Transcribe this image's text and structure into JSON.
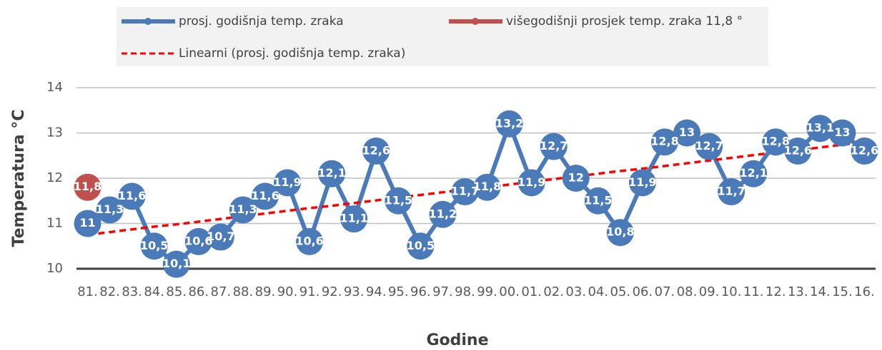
{
  "chart_data": {
    "type": "line",
    "y_label": "Temperatura °C",
    "x_label": "Godine",
    "categories": [
      "81.",
      "82.",
      "83.",
      "84.",
      "85.",
      "86.",
      "87.",
      "88.",
      "89.",
      "90.",
      "91.",
      "92.",
      "93.",
      "94.",
      "95.",
      "96.",
      "97.",
      "98.",
      "99.",
      "00.",
      "01.",
      "02.",
      "03.",
      "04.",
      "05.",
      "06.",
      "07.",
      "08.",
      "09.",
      "10.",
      "11.",
      "12.",
      "13.",
      "14.",
      "15.",
      "16."
    ],
    "series": [
      {
        "name": "prosj. godišnja temp. zraka",
        "color": "#4a7ab8",
        "style": "solid",
        "markers": true,
        "values": [
          11,
          11.3,
          11.6,
          10.5,
          10.1,
          10.6,
          10.7,
          11.3,
          11.6,
          11.9,
          10.6,
          12.1,
          11.1,
          12.6,
          11.5,
          10.5,
          11.2,
          11.7,
          11.8,
          13.2,
          11.9,
          12.7,
          12,
          11.5,
          10.8,
          11.9,
          12.8,
          13,
          12.7,
          11.7,
          12.1,
          12.8,
          12.6,
          13.1,
          13,
          12.6
        ],
        "value_labels": [
          "11",
          "11,3",
          "11,6",
          "10,5",
          "10,1",
          "10,6",
          "10,7",
          "11,3",
          "11,6",
          "11,9",
          "10,6",
          "12,1",
          "11,1",
          "12,6",
          "11,5",
          "10,5",
          "11,2",
          "11,7",
          "11,8",
          "13,2",
          "11,9",
          "12,7",
          "12",
          "11,5",
          "10,8",
          "11,9",
          "12,8",
          "13",
          "12,7",
          "11,7",
          "12,1",
          "12,8",
          "12,6",
          "13,1",
          "13",
          "12,6"
        ]
      },
      {
        "name": "višegodišnji prosjek temp. zraka 11,8 °",
        "color": "#c0504d",
        "style": "solid",
        "markers": true,
        "values": [
          11.8,
          null,
          null,
          null,
          null,
          null,
          null,
          null,
          null,
          null,
          null,
          null,
          null,
          null,
          null,
          null,
          null,
          null,
          null,
          null,
          null,
          null,
          null,
          null,
          null,
          null,
          null,
          null,
          null,
          null,
          null,
          null,
          null,
          null,
          null,
          null
        ],
        "value_labels": [
          "11,8",
          null,
          null,
          null,
          null,
          null,
          null,
          null,
          null,
          null,
          null,
          null,
          null,
          null,
          null,
          null,
          null,
          null,
          null,
          null,
          null,
          null,
          null,
          null,
          null,
          null,
          null,
          null,
          null,
          null,
          null,
          null,
          null,
          null,
          null,
          null
        ]
      },
      {
        "name": "Linearni (prosj. godišnja temp. zraka)",
        "color": "#ff0000",
        "style": "dashed",
        "markers": false,
        "values": [
          10.75,
          10.81,
          10.87,
          10.93,
          10.98,
          11.04,
          11.1,
          11.16,
          11.22,
          11.28,
          11.34,
          11.39,
          11.45,
          11.51,
          11.57,
          11.63,
          11.69,
          11.75,
          11.8,
          11.86,
          11.92,
          11.98,
          12.04,
          12.1,
          12.16,
          12.21,
          12.27,
          12.33,
          12.39,
          12.45,
          12.51,
          12.57,
          12.62,
          12.68,
          12.74,
          12.8
        ]
      }
    ],
    "ylim": [
      10,
      14
    ],
    "yticks": [
      10,
      11,
      12,
      13,
      14
    ],
    "grid": true,
    "legend": "top"
  }
}
